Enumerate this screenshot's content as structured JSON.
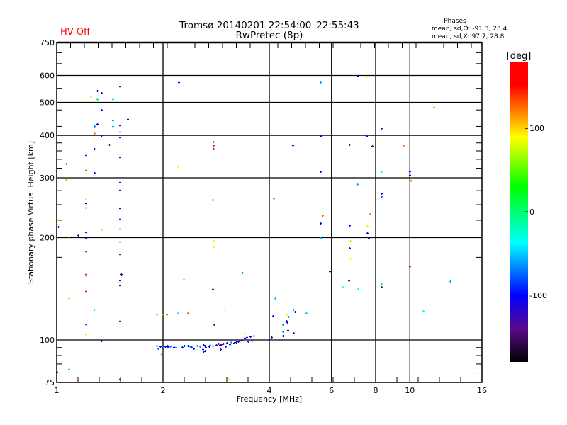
{
  "header": {
    "status": "HV Off",
    "title_line1": "Tromsø 20140201 22:54:00–22:55:43",
    "title_line2": "RwPretec (8p)",
    "phases_title": "Phases",
    "phases_o": "mean, sd,O: -91.3, 23.4",
    "phases_x": "mean, sd,X:  97.7, 28.8"
  },
  "chart_data": {
    "type": "scatter",
    "title": "Tromsø 20140201 22:54:00–22:55:43 RwPretec (8p)",
    "xlabel": "Frequency [MHz]",
    "ylabel": "Stationary phase Virtual Height [km]",
    "xscale": "log2",
    "yscale": "log10",
    "xlim": [
      1,
      16
    ],
    "ylim": [
      75,
      750
    ],
    "x_ticks": [
      1,
      2,
      4,
      6,
      8,
      10,
      16
    ],
    "x_tick_labels": [
      "1",
      "2",
      "4",
      "6",
      "8",
      "10",
      "16"
    ],
    "y_ticks": [
      75,
      100,
      200,
      300,
      400,
      500,
      600,
      750
    ],
    "y_tick_labels": [
      "75",
      "100",
      "200",
      "300",
      "400",
      "500",
      "600",
      "750"
    ],
    "x_grid": [
      2,
      4,
      6,
      8,
      10
    ],
    "y_grid": [
      100,
      200,
      300,
      400,
      500,
      600
    ],
    "colorbar": {
      "label": "[deg]",
      "range": [
        -180,
        180
      ],
      "ticks": [
        100,
        0,
        -100
      ],
      "tick_labels": [
        "100",
        "0",
        "-100"
      ],
      "stops": [
        {
          "v": -180,
          "color": "#000000"
        },
        {
          "v": -140,
          "color": "#5a0a8c"
        },
        {
          "v": -100,
          "color": "#0000ff"
        },
        {
          "v": -37,
          "color": "#00ffff"
        },
        {
          "v": 30,
          "color": "#00ff00"
        },
        {
          "v": 89,
          "color": "#ffff00"
        },
        {
          "v": 152,
          "color": "#ff0000"
        },
        {
          "v": 180,
          "color": "#ff0000"
        }
      ]
    },
    "points_fields": [
      "freq_MHz",
      "height_km",
      "phase_deg"
    ],
    "points": [
      [
        1.51,
        557,
        -120
      ],
      [
        1.3,
        540,
        -100
      ],
      [
        1.34,
        533,
        -100
      ],
      [
        1.25,
        520,
        80
      ],
      [
        1.3,
        511,
        -10
      ],
      [
        1.44,
        511,
        -50
      ],
      [
        1.34,
        476,
        -100
      ],
      [
        1.59,
        447,
        -100
      ],
      [
        1.44,
        442,
        -55
      ],
      [
        1.3,
        432,
        -100
      ],
      [
        1.28,
        426,
        -70
      ],
      [
        1.44,
        426,
        -55
      ],
      [
        1.51,
        428,
        -110
      ],
      [
        1.51,
        410,
        -110
      ],
      [
        1.28,
        405,
        120
      ],
      [
        1.34,
        400,
        -100
      ],
      [
        1.51,
        394,
        -110
      ],
      [
        1.41,
        375,
        -140
      ],
      [
        1.28,
        366,
        -100
      ],
      [
        1.21,
        350,
        -95
      ],
      [
        1.51,
        344,
        -110
      ],
      [
        1.06,
        331,
        125
      ],
      [
        1.21,
        316,
        135
      ],
      [
        1.28,
        310,
        -105
      ],
      [
        1.06,
        297,
        110
      ],
      [
        1.51,
        292,
        -110
      ],
      [
        1.51,
        277,
        -110
      ],
      [
        1.21,
        260,
        95
      ],
      [
        1.21,
        252,
        -100
      ],
      [
        1.21,
        245,
        -90
      ],
      [
        1.51,
        244,
        -105
      ],
      [
        1.01,
        226,
        85
      ],
      [
        1.51,
        227,
        -110
      ],
      [
        1.01,
        215,
        -90
      ],
      [
        1.21,
        207,
        -95
      ],
      [
        1.34,
        211,
        70
      ],
      [
        1.51,
        212,
        -120
      ],
      [
        1.15,
        203,
        -140
      ],
      [
        1.08,
        201,
        85
      ],
      [
        1.21,
        200,
        -115
      ],
      [
        1.51,
        195,
        -125
      ],
      [
        1.21,
        182,
        -75
      ],
      [
        1.51,
        179,
        -130
      ],
      [
        1.21,
        156,
        165
      ],
      [
        1.21,
        155,
        -100
      ],
      [
        1.52,
        156,
        -125
      ],
      [
        1.51,
        150,
        -135
      ],
      [
        1.51,
        145,
        -140
      ],
      [
        1.21,
        139,
        160
      ],
      [
        1.08,
        133,
        65
      ],
      [
        1.21,
        127,
        90
      ],
      [
        1.28,
        123,
        -35
      ],
      [
        1.51,
        114,
        -140
      ],
      [
        1.21,
        111,
        -80
      ],
      [
        1.21,
        104,
        95
      ],
      [
        1.34,
        99.5,
        -100
      ],
      [
        1.08,
        82,
        30
      ],
      [
        1.0,
        80.5,
        -85
      ],
      [
        1.51,
        77,
        -140
      ],
      [
        1.92,
        119,
        60
      ],
      [
        1.98,
        119,
        90
      ],
      [
        2.05,
        119,
        125
      ],
      [
        2.2,
        120,
        -45
      ],
      [
        2.35,
        120,
        130
      ],
      [
        2.99,
        123,
        65
      ],
      [
        2.79,
        111,
        -130
      ],
      [
        3.4,
        105,
        90
      ],
      [
        4.15,
        133,
        -50
      ],
      [
        4.67,
        123,
        -55
      ],
      [
        4.72,
        121,
        -100
      ],
      [
        5.08,
        120,
        -50
      ],
      [
        4.47,
        119,
        95
      ],
      [
        4.1,
        118,
        -105
      ],
      [
        4.53,
        117,
        -60
      ],
      [
        4.47,
        114,
        -100
      ],
      [
        4.49,
        113,
        -130
      ],
      [
        4.37,
        111,
        -65
      ],
      [
        4.51,
        107,
        -135
      ],
      [
        4.37,
        106,
        -60
      ],
      [
        4.67,
        105,
        -130
      ],
      [
        4.37,
        103,
        -100
      ],
      [
        4.06,
        102,
        -125
      ],
      [
        1.92,
        96.2,
        -95
      ],
      [
        1.94,
        94.4,
        -70
      ],
      [
        1.96,
        95.8,
        -100
      ],
      [
        2.03,
        95.8,
        -100
      ],
      [
        2.06,
        96.2,
        -125
      ],
      [
        2.09,
        95.8,
        -65
      ],
      [
        2.07,
        95.3,
        -95
      ],
      [
        2.14,
        95.3,
        -100
      ],
      [
        2.17,
        95.3,
        -60
      ],
      [
        2.27,
        95.3,
        -95
      ],
      [
        2.3,
        96.2,
        -90
      ],
      [
        2.35,
        96.2,
        -100
      ],
      [
        2.38,
        95.8,
        -60
      ],
      [
        2.41,
        95.3,
        -95
      ],
      [
        2.44,
        94.4,
        -95
      ],
      [
        2.5,
        96.2,
        -60
      ],
      [
        2.54,
        95.8,
        -65
      ],
      [
        2.59,
        94.0,
        -100
      ],
      [
        2.6,
        96.7,
        -100
      ],
      [
        2.63,
        96.2,
        -95
      ],
      [
        2.64,
        95.3,
        -100
      ],
      [
        2.7,
        95.8,
        -100
      ],
      [
        2.71,
        96.7,
        -65
      ],
      [
        2.76,
        96.2,
        -100
      ],
      [
        2.83,
        96.7,
        -125
      ],
      [
        2.87,
        97.6,
        -130
      ],
      [
        2.89,
        96.7,
        -105
      ],
      [
        2.92,
        97.2,
        -130
      ],
      [
        2.96,
        97.6,
        -125
      ],
      [
        3.0,
        95.8,
        -130
      ],
      [
        3.03,
        98.1,
        -100
      ],
      [
        3.09,
        97.2,
        -100
      ],
      [
        3.12,
        98.5,
        -60
      ],
      [
        3.17,
        98.1,
        -125
      ],
      [
        3.22,
        98.5,
        -100
      ],
      [
        3.26,
        99.0,
        -130
      ],
      [
        3.29,
        99.5,
        -125
      ],
      [
        3.34,
        100,
        -100
      ],
      [
        3.4,
        101.5,
        -105
      ],
      [
        3.45,
        101.9,
        -130
      ],
      [
        3.48,
        99.0,
        -125
      ],
      [
        3.53,
        102.4,
        -100
      ],
      [
        3.56,
        99.5,
        -105
      ],
      [
        3.61,
        103,
        -100
      ],
      [
        2.63,
        93.1,
        -100
      ],
      [
        2.6,
        92.6,
        -95
      ],
      [
        1.98,
        90.8,
        -65
      ],
      [
        2.91,
        94.0,
        -130
      ],
      [
        2.21,
        573,
        -100
      ],
      [
        2.2,
        324,
        90
      ],
      [
        2.29,
        151,
        100
      ],
      [
        2.78,
        383,
        130
      ],
      [
        2.78,
        374,
        160
      ],
      [
        2.78,
        365,
        -140
      ],
      [
        2.76,
        259,
        -140
      ],
      [
        2.78,
        196,
        95
      ],
      [
        2.78,
        188,
        95
      ],
      [
        2.76,
        141,
        -140
      ],
      [
        3.35,
        158,
        -60
      ],
      [
        4.11,
        261,
        125
      ],
      [
        4.66,
        374,
        -100
      ],
      [
        5.58,
        573,
        -60
      ],
      [
        5.58,
        398,
        -100
      ],
      [
        5.58,
        313,
        -100
      ],
      [
        5.65,
        233,
        125
      ],
      [
        5.58,
        221,
        -100
      ],
      [
        5.58,
        200,
        -55
      ],
      [
        5.93,
        159,
        -110
      ],
      [
        6.43,
        143,
        -35
      ],
      [
        6.74,
        218,
        -100
      ],
      [
        6.74,
        187,
        -130
      ],
      [
        6.77,
        196,
        95
      ],
      [
        6.77,
        174,
        95
      ],
      [
        6.7,
        150,
        -135
      ],
      [
        7.13,
        141,
        -40
      ],
      [
        6.74,
        376,
        -140
      ],
      [
        7.1,
        598,
        -100
      ],
      [
        7.1,
        287,
        -60
      ],
      [
        7.55,
        398,
        -110
      ],
      [
        7.58,
        595,
        90
      ],
      [
        7.71,
        235,
        125
      ],
      [
        7.58,
        216,
        95
      ],
      [
        7.58,
        206,
        -100
      ],
      [
        7.65,
        200,
        -140
      ],
      [
        7.82,
        372,
        -140
      ],
      [
        8.29,
        420,
        -130
      ],
      [
        8.29,
        313,
        -30
      ],
      [
        8.29,
        270,
        -100
      ],
      [
        8.29,
        265,
        -80
      ],
      [
        8.29,
        146,
        20
      ],
      [
        8.29,
        143,
        -130
      ],
      [
        9.6,
        374,
        125
      ],
      [
        9.99,
        313,
        -95
      ],
      [
        9.99,
        306,
        -100
      ],
      [
        9.99,
        296,
        125
      ],
      [
        10.08,
        295,
        110
      ],
      [
        9.99,
        165,
        160
      ],
      [
        10.89,
        122,
        -35
      ],
      [
        11.67,
        485,
        110
      ],
      [
        12.98,
        149,
        -55
      ],
      [
        3.07,
        77,
        90
      ]
    ]
  }
}
